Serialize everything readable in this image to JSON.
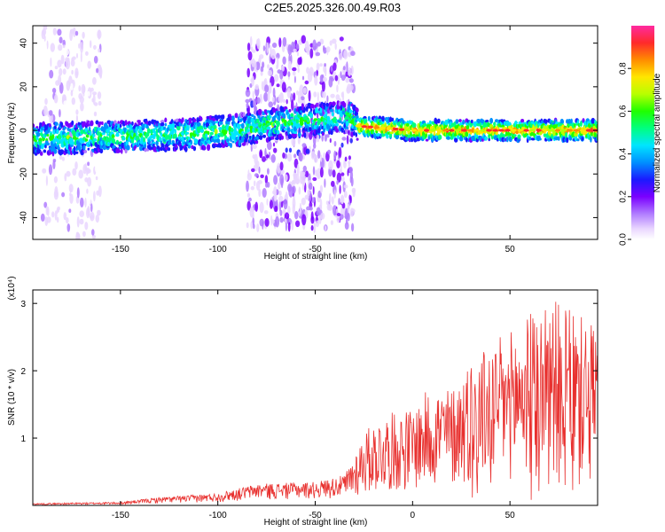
{
  "page": {
    "title": "C2E5.2025.326.00.49.R03"
  },
  "colors": {
    "snr_line": "#e8302e",
    "axis": "#000000",
    "background": "#ffffff"
  },
  "chart_data": [
    {
      "type": "heatmap",
      "title": "C2E5.2025.326.00.49.R03",
      "xlabel": "Height of straight line (km)",
      "ylabel": "Frequency (Hz)",
      "xlim": [
        -195,
        95
      ],
      "ylim": [
        -50,
        48
      ],
      "xticks": [
        -150,
        -100,
        -50,
        0,
        50
      ],
      "yticks": [
        -40,
        -20,
        0,
        20,
        40
      ],
      "colorbar": {
        "label": "Normalized spectral amplitude",
        "ticks": [
          0.0,
          0.2,
          0.4,
          0.6,
          0.8
        ],
        "range": [
          0,
          1
        ]
      },
      "ridge": [
        {
          "h": -195,
          "f": -4
        },
        {
          "h": -160,
          "f": -3
        },
        {
          "h": -120,
          "f": -2
        },
        {
          "h": -90,
          "f": 0
        },
        {
          "h": -70,
          "f": 3
        },
        {
          "h": -50,
          "f": 5
        },
        {
          "h": -32,
          "f": 6
        },
        {
          "h": -28,
          "f": 2
        },
        {
          "h": 0,
          "f": 0
        },
        {
          "h": 50,
          "f": 0
        },
        {
          "h": 95,
          "f": 0
        }
      ],
      "scatter_regions": [
        {
          "h_range": [
            -190,
            -160
          ],
          "f_range": [
            -50,
            48
          ],
          "description": "sparse low amplitude spread"
        },
        {
          "h_range": [
            -85,
            -30
          ],
          "f_range": [
            -45,
            42
          ],
          "description": "broadband low-to-mid amplitude scatter"
        }
      ]
    },
    {
      "type": "line",
      "xlabel": "Height of straight line (km)",
      "ylabel": "SNR (10 * v/v)",
      "y_multiplier": "(x10⁴)",
      "xlim": [
        -195,
        95
      ],
      "ylim": [
        0,
        3.2
      ],
      "xticks": [
        -150,
        -100,
        -50,
        0,
        50
      ],
      "yticks": [
        1,
        2,
        3
      ],
      "envelope": [
        {
          "h": -195,
          "v": 0.03
        },
        {
          "h": -150,
          "v": 0.05
        },
        {
          "h": -130,
          "v": 0.12
        },
        {
          "h": -100,
          "v": 0.18
        },
        {
          "h": -80,
          "v": 0.32
        },
        {
          "h": -50,
          "v": 0.35
        },
        {
          "h": -35,
          "v": 0.45
        },
        {
          "h": -25,
          "v": 1.1
        },
        {
          "h": -15,
          "v": 1.35
        },
        {
          "h": 0,
          "v": 1.45
        },
        {
          "h": 10,
          "v": 1.8
        },
        {
          "h": 20,
          "v": 1.75
        },
        {
          "h": 30,
          "v": 2.2
        },
        {
          "h": 40,
          "v": 2.4
        },
        {
          "h": 55,
          "v": 2.7
        },
        {
          "h": 70,
          "v": 3.15
        },
        {
          "h": 85,
          "v": 2.8
        },
        {
          "h": 95,
          "v": 2.8
        }
      ]
    }
  ]
}
